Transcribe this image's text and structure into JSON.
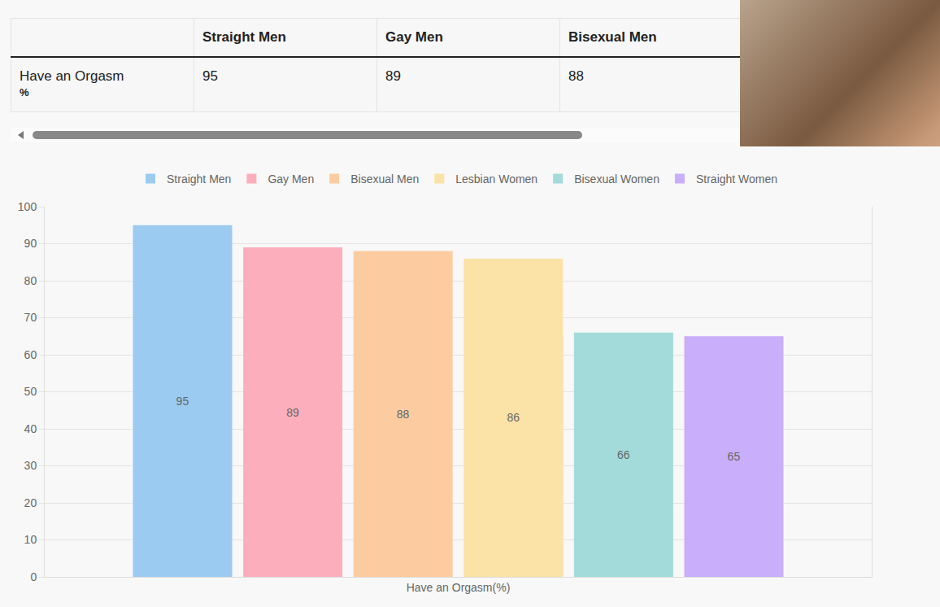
{
  "table": {
    "columns": [
      "Straight Men",
      "Gay Men",
      "Bisexual Men"
    ],
    "rows": [
      {
        "label": "Have an Orgasm",
        "unit": "%",
        "values": [
          95,
          89,
          88
        ]
      }
    ]
  },
  "chart_data": {
    "type": "bar",
    "categories": [
      "Have an Orgasm(%)"
    ],
    "series": [
      {
        "name": "Straight Men",
        "color": "#9bcbf1",
        "values": [
          95
        ]
      },
      {
        "name": "Gay Men",
        "color": "#fdaebc",
        "values": [
          89
        ]
      },
      {
        "name": "Bisexual Men",
        "color": "#fccca0",
        "values": [
          88
        ]
      },
      {
        "name": "Lesbian Women",
        "color": "#fbe2a6",
        "values": [
          86
        ]
      },
      {
        "name": "Bisexual Women",
        "color": "#a2dbda",
        "values": [
          66
        ]
      },
      {
        "name": "Straight Women",
        "color": "#c8aefb",
        "values": [
          65
        ]
      }
    ],
    "ylim": [
      0,
      100
    ],
    "yticks": [
      0,
      10,
      20,
      30,
      40,
      50,
      60,
      70,
      80,
      90,
      100
    ],
    "grid": true,
    "data_labels": true,
    "legend": "top"
  }
}
